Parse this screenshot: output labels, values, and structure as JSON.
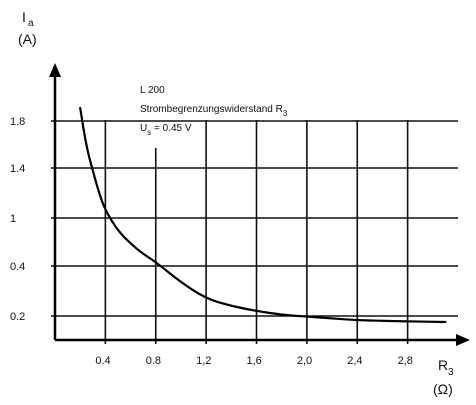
{
  "chart_data": {
    "type": "line",
    "title": "",
    "annotations": {
      "line1": "L 200",
      "line2": "Strombegrenzungswiderstand R",
      "line2_sub": "3",
      "line3_main": "U",
      "line3_sub": "s",
      "line3_rest": " = 0.45 V"
    },
    "y_axis": {
      "name": "I",
      "name_sub": "a",
      "unit": "(A)",
      "tick_labels": [
        "1.8",
        "1.4",
        "1",
        "0.4",
        "0.2"
      ]
    },
    "x_axis": {
      "name": "R",
      "name_sub": "3",
      "unit": "(Ω)",
      "tick_values": [
        0.4,
        0.8,
        1.2,
        1.6,
        2.0,
        2.4,
        2.8
      ],
      "tick_labels": [
        "0.4",
        "0.8",
        "1,2",
        "1,6",
        "2,0",
        "2,4",
        "2,8"
      ],
      "range": [
        0,
        3.2
      ]
    },
    "grid": true,
    "series": [
      {
        "points": [
          {
            "x": 0.2,
            "y": 1.9
          },
          {
            "x": 0.25,
            "y": 1.58
          },
          {
            "x": 0.3,
            "y": 1.38
          },
          {
            "x": 0.35,
            "y": 1.2
          },
          {
            "x": 0.4,
            "y": 1.06
          },
          {
            "x": 0.5,
            "y": 0.84
          },
          {
            "x": 0.6,
            "y": 0.68
          },
          {
            "x": 0.7,
            "y": 0.55
          },
          {
            "x": 0.8,
            "y": 0.45
          },
          {
            "x": 1.0,
            "y": 0.335
          },
          {
            "x": 1.2,
            "y": 0.27
          },
          {
            "x": 1.4,
            "y": 0.24
          },
          {
            "x": 1.6,
            "y": 0.22
          },
          {
            "x": 1.8,
            "y": 0.205
          },
          {
            "x": 2.0,
            "y": 0.195
          },
          {
            "x": 2.2,
            "y": 0.18
          },
          {
            "x": 2.4,
            "y": 0.165
          },
          {
            "x": 2.6,
            "y": 0.16
          },
          {
            "x": 2.8,
            "y": 0.155
          },
          {
            "x": 3.1,
            "y": 0.15
          }
        ]
      }
    ]
  }
}
